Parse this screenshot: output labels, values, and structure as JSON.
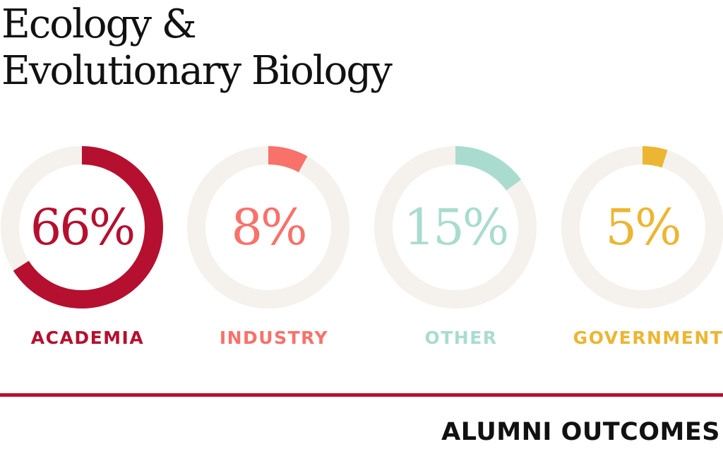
{
  "title": {
    "line1": "Ecology &",
    "line2": "Evolutionary Biology"
  },
  "footer": {
    "label": "ALUMNI OUTCOMES"
  },
  "colors": {
    "track": "#f5f1ec",
    "divider": "#b5102f",
    "title": "#111111"
  },
  "chart_data": {
    "type": "pie",
    "subtype": "donut-set",
    "series": [
      {
        "name": "ACADEMIA",
        "value": 66,
        "label": "66%",
        "color": "#b5102f"
      },
      {
        "name": "INDUSTRY",
        "value": 8,
        "label": "8%",
        "color": "#f8716a"
      },
      {
        "name": "OTHER",
        "value": 15,
        "label": "15%",
        "color": "#a9dccf"
      },
      {
        "name": "GOVERNMENT",
        "value": 5,
        "label": "5%",
        "color": "#ecb632"
      }
    ]
  }
}
